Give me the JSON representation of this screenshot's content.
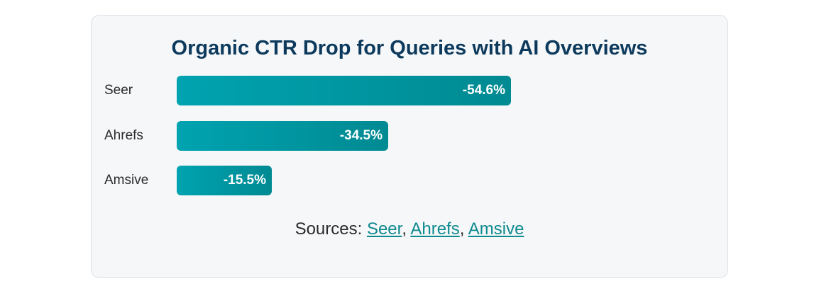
{
  "chart_data": {
    "type": "bar",
    "orientation": "horizontal",
    "title": "Organic CTR Drop for Queries with AI Overviews",
    "categories": [
      "Seer",
      "Ahrefs",
      "Amsive"
    ],
    "values": [
      -54.6,
      -34.5,
      -15.5
    ],
    "value_labels": [
      "-54.6%",
      "-34.5%",
      "-15.5%"
    ],
    "xlim": [
      0,
      -54.6
    ],
    "xlabel": "",
    "ylabel": "",
    "grid": false,
    "legend": "none",
    "bar_color_start": "#00a3b0",
    "bar_color_end": "#008a92"
  },
  "sources": {
    "prefix": "Sources:",
    "separator": ",",
    "links": [
      "Seer",
      "Ahrefs",
      "Amsive"
    ]
  },
  "colors": {
    "title": "#0d3a5c",
    "link": "#0f8a8f",
    "card_background": "#f5f7f9"
  }
}
